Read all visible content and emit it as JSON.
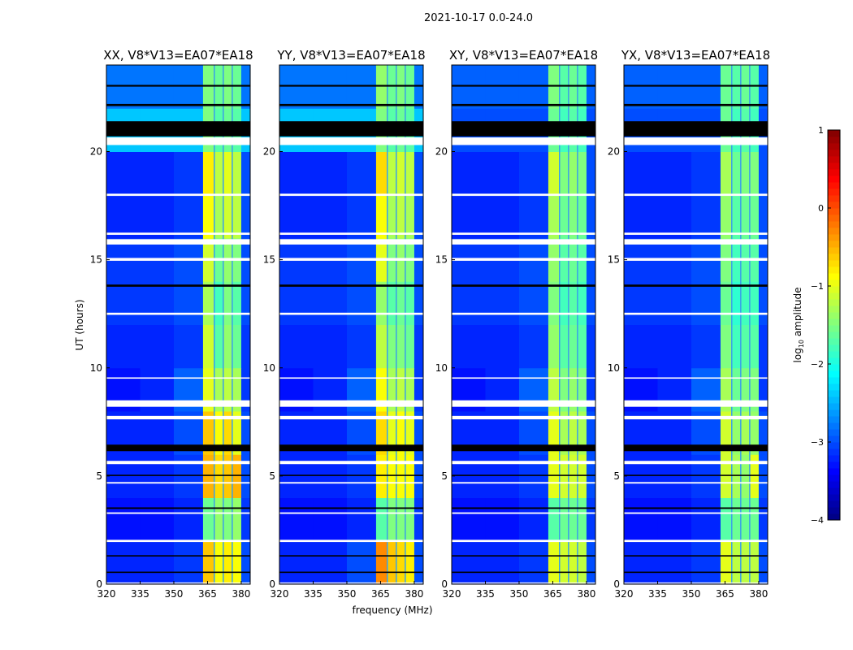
{
  "chart_data": {
    "type": "heatmap",
    "title": "2021-10-17 0.0-24.0",
    "xlabel": "frequency (MHz)",
    "ylabel": "UT (hours)",
    "xlim": [
      320,
      384
    ],
    "ylim": [
      0,
      24
    ],
    "xticks": [
      "320",
      "335",
      "350",
      "365",
      "380"
    ],
    "xtick_values": [
      320,
      335,
      350,
      365,
      380
    ],
    "yticks": [
      "0",
      "5",
      "10",
      "15",
      "20"
    ],
    "ytick_values": [
      0,
      5,
      10,
      15,
      20
    ],
    "freq_bin_edges": [
      320,
      335,
      350,
      363,
      368,
      372,
      376,
      380,
      384
    ],
    "time_bin_edges": [
      0,
      2,
      4,
      6,
      8,
      10,
      12,
      14,
      16,
      18,
      20,
      22,
      24
    ],
    "colorbar": {
      "label": "log10 amplitude",
      "label_main": "log",
      "label_sub": "10",
      "label_rest": " amplitude",
      "range": [
        -4,
        1
      ],
      "ticks": [
        "1",
        "0",
        "−1",
        "−2",
        "−3",
        "−4"
      ],
      "tick_values": [
        1,
        0,
        -1,
        -2,
        -3,
        -4
      ],
      "colormap": "jet"
    },
    "flags": [
      {
        "start": 0.03,
        "end": 0.08,
        "color": "#ffffff"
      },
      {
        "start": 0.52,
        "end": 0.58,
        "color": "#000000"
      },
      {
        "start": 1.28,
        "end": 1.34,
        "color": "#000000"
      },
      {
        "start": 1.95,
        "end": 2.05,
        "color": "#ffffff"
      },
      {
        "start": 3.25,
        "end": 3.32,
        "color": "#ffffff"
      },
      {
        "start": 3.48,
        "end": 3.55,
        "color": "#000000"
      },
      {
        "start": 4.65,
        "end": 4.72,
        "color": "#ffffff"
      },
      {
        "start": 5.0,
        "end": 5.06,
        "color": "#000000"
      },
      {
        "start": 5.55,
        "end": 5.7,
        "color": "#ffffff"
      },
      {
        "start": 6.15,
        "end": 6.45,
        "color": "#000000"
      },
      {
        "start": 7.62,
        "end": 7.78,
        "color": "#ffffff"
      },
      {
        "start": 8.2,
        "end": 8.5,
        "color": "#ffffff"
      },
      {
        "start": 9.5,
        "end": 9.56,
        "color": "#ffffff"
      },
      {
        "start": 12.45,
        "end": 12.55,
        "color": "#ffffff"
      },
      {
        "start": 13.75,
        "end": 13.85,
        "color": "#000000"
      },
      {
        "start": 14.95,
        "end": 15.08,
        "color": "#ffffff"
      },
      {
        "start": 15.7,
        "end": 15.95,
        "color": "#ffffff"
      },
      {
        "start": 16.15,
        "end": 16.25,
        "color": "#ffffff"
      },
      {
        "start": 17.95,
        "end": 18.05,
        "color": "#ffffff"
      },
      {
        "start": 20.3,
        "end": 20.65,
        "color": "#ffffff"
      },
      {
        "start": 20.7,
        "end": 21.4,
        "color": "#000000"
      },
      {
        "start": 22.1,
        "end": 22.2,
        "color": "#000000"
      },
      {
        "start": 23.0,
        "end": 23.08,
        "color": "#000000"
      }
    ],
    "panels": [
      {
        "title": "XX, V8*V13=EA07*EA18",
        "values": [
          [
            -3.2,
            -3.2,
            -3.1,
            -0.6,
            -0.9,
            -0.8,
            -0.9,
            -3.0
          ],
          [
            -3.3,
            -3.3,
            -3.2,
            -1.6,
            -1.4,
            -1.5,
            -1.4,
            -3.1
          ],
          [
            -3.2,
            -3.2,
            -3.1,
            -0.5,
            -0.7,
            -0.6,
            -0.5,
            -3.0
          ],
          [
            -3.2,
            -3.2,
            -3.0,
            -0.6,
            -0.9,
            -0.7,
            -1.0,
            -3.0
          ],
          [
            -3.3,
            -3.2,
            -2.9,
            -1.0,
            -1.3,
            -1.2,
            -1.3,
            -3.1
          ],
          [
            -3.2,
            -3.2,
            -3.1,
            -1.1,
            -1.7,
            -1.4,
            -1.6,
            -3.1
          ],
          [
            -3.1,
            -3.1,
            -3.0,
            -1.3,
            -1.8,
            -1.5,
            -1.7,
            -3.0
          ],
          [
            -3.1,
            -3.1,
            -3.0,
            -1.1,
            -1.6,
            -1.4,
            -1.5,
            -3.0
          ],
          [
            -3.2,
            -3.2,
            -3.1,
            -0.9,
            -1.3,
            -1.1,
            -1.2,
            -3.0
          ],
          [
            -3.2,
            -3.2,
            -3.1,
            -0.8,
            -1.2,
            -1.0,
            -1.2,
            -3.0
          ],
          [
            -2.4,
            -2.4,
            -2.4,
            -1.5,
            -1.7,
            -1.6,
            -1.7,
            -2.4
          ],
          [
            -2.8,
            -2.8,
            -2.8,
            -1.5,
            -1.6,
            -1.5,
            -1.6,
            -2.8
          ]
        ]
      },
      {
        "title": "YY, V8*V13=EA07*EA18",
        "values": [
          [
            -3.2,
            -3.2,
            -3.0,
            -0.3,
            -0.6,
            -0.7,
            -0.8,
            -3.0
          ],
          [
            -3.3,
            -3.3,
            -3.2,
            -1.7,
            -1.5,
            -1.5,
            -1.5,
            -3.1
          ],
          [
            -3.2,
            -3.2,
            -3.1,
            -0.8,
            -0.9,
            -0.9,
            -0.9,
            -3.0
          ],
          [
            -3.2,
            -3.2,
            -3.0,
            -0.7,
            -1.0,
            -0.9,
            -1.0,
            -3.0
          ],
          [
            -3.3,
            -3.2,
            -2.9,
            -0.9,
            -1.3,
            -1.2,
            -1.3,
            -3.1
          ],
          [
            -3.2,
            -3.2,
            -3.1,
            -1.2,
            -1.5,
            -1.5,
            -1.6,
            -3.1
          ],
          [
            -3.1,
            -3.1,
            -3.0,
            -1.4,
            -1.7,
            -1.6,
            -1.7,
            -3.0
          ],
          [
            -3.1,
            -3.1,
            -3.0,
            -1.0,
            -1.5,
            -1.4,
            -1.5,
            -3.0
          ],
          [
            -3.2,
            -3.2,
            -3.1,
            -0.9,
            -1.3,
            -1.2,
            -1.3,
            -3.0
          ],
          [
            -3.2,
            -3.2,
            -3.1,
            -0.7,
            -1.2,
            -1.1,
            -1.2,
            -3.0
          ],
          [
            -2.4,
            -2.4,
            -2.4,
            -1.5,
            -1.7,
            -1.6,
            -1.7,
            -2.4
          ],
          [
            -2.8,
            -2.8,
            -2.8,
            -1.4,
            -1.6,
            -1.5,
            -1.6,
            -2.8
          ]
        ]
      },
      {
        "title": "XY, V8*V13=EA07*EA18",
        "values": [
          [
            -3.2,
            -3.2,
            -3.1,
            -1.0,
            -1.1,
            -1.1,
            -1.2,
            -3.0
          ],
          [
            -3.3,
            -3.3,
            -3.2,
            -1.7,
            -1.6,
            -1.6,
            -1.6,
            -3.1
          ],
          [
            -3.2,
            -3.2,
            -3.1,
            -1.0,
            -1.1,
            -1.1,
            -1.1,
            -3.0
          ],
          [
            -3.2,
            -3.2,
            -3.0,
            -1.0,
            -1.3,
            -1.2,
            -1.3,
            -3.0
          ],
          [
            -3.3,
            -3.2,
            -2.9,
            -1.2,
            -1.5,
            -1.4,
            -1.5,
            -3.1
          ],
          [
            -3.2,
            -3.2,
            -3.1,
            -1.4,
            -1.7,
            -1.6,
            -1.7,
            -3.1
          ],
          [
            -3.1,
            -3.1,
            -3.0,
            -1.5,
            -1.8,
            -1.7,
            -1.8,
            -3.0
          ],
          [
            -3.1,
            -3.1,
            -3.0,
            -1.4,
            -1.7,
            -1.6,
            -1.7,
            -3.0
          ],
          [
            -3.2,
            -3.2,
            -3.1,
            -1.3,
            -1.6,
            -1.5,
            -1.6,
            -3.0
          ],
          [
            -3.2,
            -3.2,
            -3.1,
            -1.1,
            -1.5,
            -1.4,
            -1.5,
            -3.0
          ],
          [
            -3.0,
            -3.0,
            -3.0,
            -1.6,
            -1.8,
            -1.7,
            -1.8,
            -3.0
          ],
          [
            -2.9,
            -2.9,
            -2.9,
            -1.5,
            -1.7,
            -1.6,
            -1.7,
            -2.9
          ]
        ]
      },
      {
        "title": "YX, V8*V13=EA07*EA18",
        "values": [
          [
            -3.2,
            -3.2,
            -3.1,
            -1.0,
            -1.2,
            -1.2,
            -1.2,
            -3.0
          ],
          [
            -3.3,
            -3.3,
            -3.2,
            -1.7,
            -1.6,
            -1.6,
            -1.6,
            -3.1
          ],
          [
            -3.2,
            -3.2,
            -3.1,
            -1.1,
            -1.3,
            -1.4,
            -1.0,
            -3.0
          ],
          [
            -3.2,
            -3.2,
            -3.0,
            -1.1,
            -1.4,
            -1.3,
            -1.4,
            -3.0
          ],
          [
            -3.3,
            -3.2,
            -2.9,
            -1.3,
            -1.6,
            -1.5,
            -1.5,
            -3.1
          ],
          [
            -3.2,
            -3.2,
            -3.1,
            -1.5,
            -1.8,
            -1.7,
            -1.7,
            -3.1
          ],
          [
            -3.1,
            -3.1,
            -3.0,
            -1.6,
            -1.9,
            -1.8,
            -1.8,
            -3.0
          ],
          [
            -3.1,
            -3.1,
            -3.0,
            -1.5,
            -1.8,
            -1.7,
            -1.7,
            -3.0
          ],
          [
            -3.2,
            -3.2,
            -3.1,
            -1.4,
            -1.7,
            -1.6,
            -1.6,
            -3.0
          ],
          [
            -3.2,
            -3.2,
            -3.1,
            -1.3,
            -1.6,
            -1.5,
            -1.5,
            -3.0
          ],
          [
            -3.0,
            -3.0,
            -3.0,
            -1.6,
            -1.8,
            -1.7,
            -1.8,
            -3.0
          ],
          [
            -2.9,
            -2.9,
            -2.9,
            -1.6,
            -1.7,
            -1.6,
            -1.7,
            -2.9
          ]
        ]
      }
    ]
  }
}
